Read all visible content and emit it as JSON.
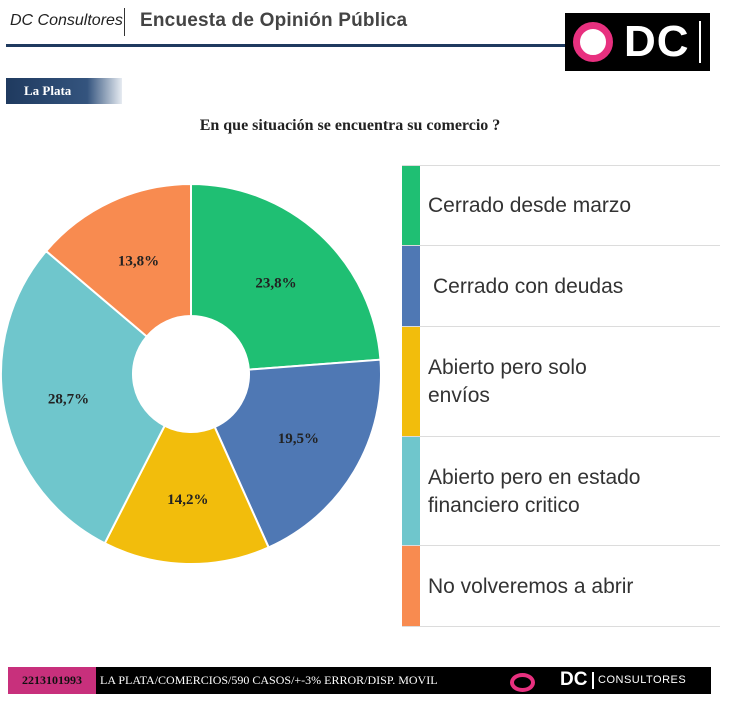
{
  "header": {
    "brand": "DC Consultores",
    "title": "Encuesta de Opinión Pública",
    "logo_text": "DC"
  },
  "location_badge": "La Plata",
  "question": "En que situación se encuentra su comercio ?",
  "colors": {
    "navy": "#1f3a5f",
    "pink": "#e8307f",
    "green": "#1fbf73",
    "blue": "#4f78b4",
    "yellow": "#f2bd0c",
    "teal": "#6fc6cc",
    "orange": "#f88b50"
  },
  "chart_data": {
    "type": "pie",
    "donut": true,
    "categories": [
      "Cerrado desde marzo",
      "Cerrado con deudas",
      "Abierto pero solo envíos",
      "Abierto pero en estado financiero critico",
      "No volveremos a abrir"
    ],
    "values": [
      23.8,
      19.5,
      14.2,
      28.7,
      13.8
    ],
    "labels": [
      "23,8%",
      "19,5%",
      "14,2%",
      "28,7%",
      "13,8%"
    ],
    "colors": [
      "#1fbf73",
      "#4f78b4",
      "#f2bd0c",
      "#6fc6cc",
      "#f88b50"
    ],
    "legend_placement": "right"
  },
  "legend": [
    {
      "label": "Cerrado desde marzo",
      "color": "#1fbf73"
    },
    {
      "label": "Cerrado con deudas",
      "color": "#4f78b4"
    },
    {
      "label": "Abierto pero solo envíos",
      "color": "#f2bd0c"
    },
    {
      "label": "Abierto pero en estado financiero critico",
      "color": "#6fc6cc"
    },
    {
      "label": "No volveremos a abrir",
      "color": "#f88b50"
    }
  ],
  "footer": {
    "phone": "2213101993",
    "caption": "LA PLATA/COMERCIOS/590 CASOS/+-3% ERROR/DISP. MOVIL",
    "logo_text": "DC",
    "logo_subtext": "CONSULTORES"
  }
}
